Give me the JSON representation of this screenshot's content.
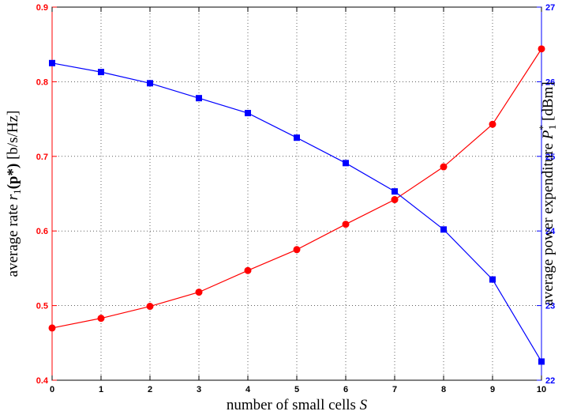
{
  "chart_data": {
    "type": "line",
    "x": [
      0,
      1,
      2,
      3,
      4,
      5,
      6,
      7,
      8,
      9,
      10
    ],
    "xlim": [
      0,
      10
    ],
    "xticks": [
      "0",
      "1",
      "2",
      "3",
      "4",
      "5",
      "6",
      "7",
      "8",
      "9",
      "10"
    ],
    "xlabel": "number of small cells",
    "xlabel_symbol": "S",
    "grid": true,
    "left_axis": {
      "label": "average rate",
      "label_symbol": "r",
      "label_subscript": "1",
      "label_arg": "(p*)",
      "label_unit": "[b/s/Hz]",
      "ylim": [
        0.4,
        0.9
      ],
      "ticks": [
        "0.4",
        "0.5",
        "0.6",
        "0.7",
        "0.8",
        "0.9"
      ],
      "color": "#ff0000"
    },
    "right_axis": {
      "label": "average power expenditure",
      "label_symbol": "P",
      "label_subscript": "1",
      "label_superscript": "*",
      "label_unit": "[dBm]",
      "ylim": [
        22,
        27
      ],
      "ticks": [
        "22",
        "23",
        "24",
        "25",
        "26",
        "27"
      ],
      "color": "#0000ff"
    },
    "series": [
      {
        "axis": "left",
        "color": "#ff0000",
        "marker": "circle",
        "values": [
          0.47,
          0.483,
          0.499,
          0.518,
          0.547,
          0.575,
          0.609,
          0.642,
          0.686,
          0.743,
          0.844
        ]
      },
      {
        "axis": "right",
        "color": "#0000ff",
        "marker": "square",
        "values": [
          26.25,
          26.13,
          25.98,
          25.78,
          25.58,
          25.25,
          24.91,
          24.53,
          24.02,
          23.35,
          22.25
        ]
      }
    ]
  }
}
